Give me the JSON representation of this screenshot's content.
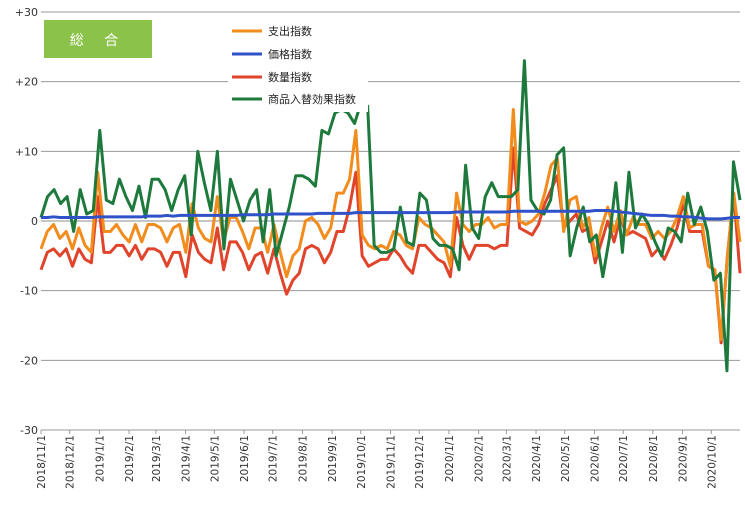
{
  "chart_data": {
    "type": "line",
    "title_badge": "総 合",
    "ylim": [
      -30,
      30
    ],
    "yticks": [
      "+30",
      "+20",
      "+10",
      "0",
      "-10",
      "-20",
      "-30"
    ],
    "ytick_values": [
      30,
      20,
      10,
      0,
      -10,
      -20,
      -30
    ],
    "x_date_labels": [
      "2018/11/1",
      "2018/12/1",
      "2019/1/1",
      "2019/2/1",
      "2019/3/1",
      "2019/4/1",
      "2019/5/1",
      "2019/6/1",
      "2019/7/1",
      "2019/8/1",
      "2019/9/1",
      "2019/10/1",
      "2019/11/1",
      "2019/12/1",
      "2020/1/1",
      "2020/2/1",
      "2020/3/1",
      "2020/4/1",
      "2020/5/1",
      "2020/6/1",
      "2020/7/1",
      "2020/8/1",
      "2020/9/1",
      "2020/10/1"
    ],
    "xlim": [
      "2018/11/1",
      "2020/10/31"
    ],
    "grid": true,
    "legend_position": "top-center",
    "series": [
      {
        "name": "支出指数",
        "color": "#f28c1c",
        "values": [
          -4.0,
          -1.5,
          -0.5,
          -2.5,
          -1.5,
          -4.0,
          -1.0,
          -3.5,
          -4.5,
          7.0,
          -1.5,
          -1.5,
          -0.5,
          -2.0,
          -3.0,
          -0.5,
          -3.0,
          -0.5,
          -0.5,
          -1.0,
          -3.0,
          -1.0,
          -0.5,
          -4.5,
          2.5,
          -1.0,
          -2.5,
          -3.0,
          3.5,
          -3.0,
          0.5,
          0.5,
          -1.5,
          -4.0,
          -1.0,
          -1.0,
          -4.5,
          -0.5,
          -4.5,
          -8.0,
          -5.0,
          -4.0,
          0.0,
          0.5,
          -0.5,
          -2.5,
          -1.0,
          4.0,
          4.0,
          6.0,
          13.0,
          -2.0,
          -3.5,
          -4.0,
          -3.5,
          -4.0,
          -1.5,
          -2.0,
          -3.5,
          -4.0,
          0.5,
          -0.5,
          -1.0,
          -2.0,
          -3.0,
          -6.5,
          4.0,
          -0.5,
          -1.5,
          -0.5,
          -0.5,
          0.5,
          -1.0,
          -0.5,
          -0.5,
          16.0,
          0.0,
          -0.5,
          0.0,
          1.0,
          4.0,
          8.0,
          9.0,
          -1.5,
          3.0,
          3.5,
          -1.0,
          0.5,
          -5.0,
          -1.0,
          2.0,
          -1.5,
          1.5,
          -2.0,
          0.5,
          -0.5,
          -0.5,
          -2.5,
          -1.5,
          -2.5,
          -1.5,
          0.5,
          3.5,
          -1.0,
          -0.5,
          -0.5,
          -6.5,
          -7.0,
          -17.0,
          -5.0,
          4.0,
          -3.0
        ]
      },
      {
        "name": "価格指数",
        "color": "#2f52c8",
        "values": [
          0.5,
          0.5,
          0.6,
          0.5,
          0.5,
          0.5,
          0.5,
          0.5,
          0.5,
          0.6,
          0.6,
          0.6,
          0.6,
          0.6,
          0.6,
          0.6,
          0.6,
          0.7,
          0.7,
          0.7,
          0.8,
          0.7,
          0.8,
          0.8,
          0.8,
          0.8,
          0.8,
          0.8,
          0.8,
          0.8,
          0.8,
          0.8,
          0.9,
          0.9,
          0.9,
          0.9,
          0.9,
          1.0,
          1.0,
          1.0,
          1.0,
          1.0,
          1.0,
          1.0,
          1.1,
          1.1,
          1.1,
          1.1,
          1.1,
          1.1,
          1.2,
          1.2,
          1.2,
          1.2,
          1.2,
          1.2,
          1.2,
          1.2,
          1.2,
          1.2,
          1.2,
          1.2,
          1.2,
          1.2,
          1.2,
          1.2,
          1.3,
          1.3,
          1.3,
          1.3,
          1.3,
          1.3,
          1.3,
          1.3,
          1.3,
          1.4,
          1.4,
          1.4,
          1.4,
          1.4,
          1.4,
          1.4,
          1.4,
          1.4,
          1.4,
          1.4,
          1.4,
          1.4,
          1.5,
          1.5,
          1.5,
          1.4,
          1.3,
          1.2,
          1.1,
          1.0,
          0.9,
          0.8,
          0.8,
          0.8,
          0.7,
          0.7,
          0.6,
          0.6,
          0.5,
          0.4,
          0.3,
          0.3,
          0.3,
          0.4,
          0.5,
          0.5
        ]
      },
      {
        "name": "数量指数",
        "color": "#e0452c",
        "values": [
          -7.0,
          -4.5,
          -4.0,
          -5.0,
          -4.0,
          -6.5,
          -4.0,
          -5.5,
          -6.0,
          3.5,
          -4.5,
          -4.5,
          -3.5,
          -3.5,
          -5.0,
          -3.5,
          -5.5,
          -4.0,
          -4.0,
          -4.5,
          -6.5,
          -4.5,
          -4.5,
          -8.0,
          -2.0,
          -4.5,
          -5.5,
          -6.0,
          -1.0,
          -7.0,
          -3.0,
          -3.0,
          -4.5,
          -7.0,
          -5.0,
          -4.5,
          -7.5,
          -4.0,
          -7.5,
          -10.5,
          -8.5,
          -7.5,
          -4.0,
          -3.5,
          -4.0,
          -6.0,
          -4.5,
          -1.5,
          -1.5,
          2.0,
          7.0,
          -5.0,
          -6.5,
          -6.0,
          -5.5,
          -5.5,
          -4.0,
          -5.0,
          -6.5,
          -7.5,
          -3.5,
          -3.5,
          -4.5,
          -5.5,
          -6.0,
          -8.0,
          0.5,
          -3.5,
          -5.5,
          -3.5,
          -3.5,
          -3.5,
          -4.0,
          -3.5,
          -3.5,
          10.5,
          -1.0,
          -1.5,
          -2.0,
          -0.5,
          2.5,
          4.5,
          6.5,
          -1.0,
          0.0,
          1.0,
          -1.5,
          -1.0,
          -6.0,
          -3.0,
          0.0,
          -3.0,
          0.5,
          -2.0,
          -1.5,
          -2.0,
          -2.5,
          -5.0,
          -4.0,
          -5.5,
          -3.5,
          -1.0,
          2.5,
          -1.5,
          -1.5,
          -1.5,
          -6.5,
          -7.0,
          -17.5,
          -5.0,
          4.0,
          -7.5
        ]
      },
      {
        "name": "商品入替効果指数",
        "color": "#1e7a3c",
        "values": [
          0.5,
          3.5,
          4.5,
          2.5,
          3.5,
          -1.5,
          4.5,
          1.0,
          1.5,
          13.0,
          3.0,
          2.5,
          6.0,
          3.5,
          1.5,
          5.0,
          0.5,
          6.0,
          6.0,
          4.5,
          1.5,
          4.5,
          6.5,
          -2.0,
          10.0,
          5.5,
          1.5,
          10.0,
          -4.0,
          6.0,
          3.0,
          0.0,
          3.0,
          4.5,
          -3.0,
          4.5,
          -5.0,
          -1.5,
          2.0,
          6.5,
          6.5,
          6.0,
          5.0,
          13.0,
          12.5,
          15.5,
          16.0,
          15.5,
          14.0,
          17.0,
          16.5,
          -3.5,
          -4.5,
          -4.5,
          -4.0,
          2.0,
          -3.0,
          -3.5,
          4.0,
          3.0,
          -2.5,
          -3.5,
          -3.5,
          -4.0,
          -7.0,
          8.0,
          -1.0,
          -2.5,
          3.5,
          5.5,
          3.5,
          3.5,
          3.5,
          4.5,
          23.0,
          3.0,
          1.5,
          1.0,
          3.0,
          9.5,
          10.5,
          -5.0,
          -1.0,
          2.0,
          -3.0,
          -2.0,
          -8.0,
          -2.5,
          5.5,
          -4.5,
          7.0,
          -1.0,
          1.0,
          -0.5,
          -3.0,
          -5.0,
          -1.0,
          -1.5,
          -3.0,
          4.0,
          -0.5,
          2.0,
          -1.5,
          -8.5,
          -7.5,
          -21.5,
          8.5,
          3.0
        ]
      }
    ]
  }
}
